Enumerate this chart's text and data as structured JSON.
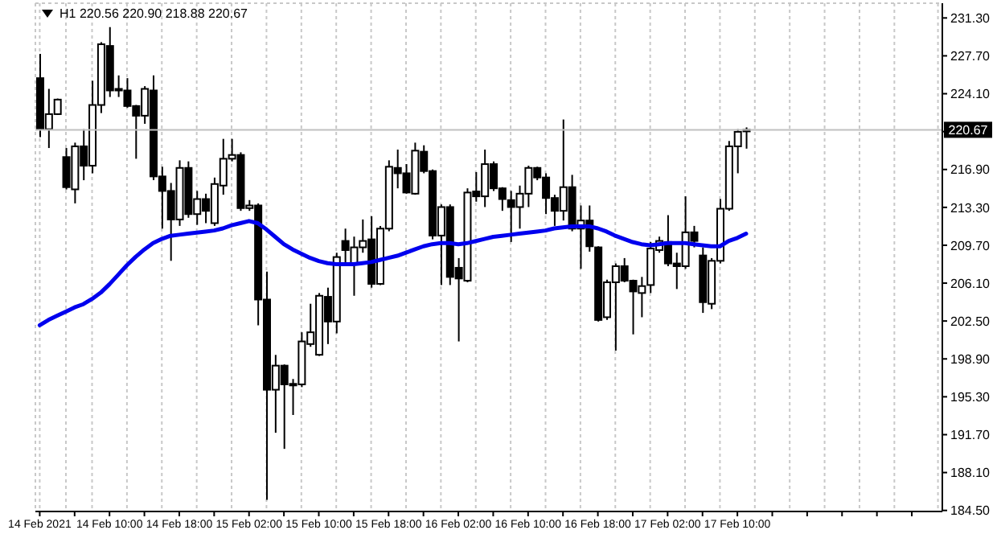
{
  "chart_data": {
    "type": "candlestick",
    "title": "H1 220.56 220.90 218.88 220.67",
    "categories": [
      "14 Feb 2021",
      null,
      null,
      null,
      null,
      null,
      null,
      null,
      "14 Feb 10:00",
      null,
      null,
      null,
      null,
      null,
      null,
      null,
      "14 Feb 18:00",
      null,
      null,
      null,
      null,
      null,
      null,
      null,
      "15 Feb 02:00",
      null,
      null,
      null,
      null,
      null,
      null,
      null,
      "15 Feb 10:00",
      null,
      null,
      null,
      null,
      null,
      null,
      null,
      "15 Feb 18:00",
      null,
      null,
      null,
      null,
      null,
      null,
      null,
      "16 Feb 02:00",
      null,
      null,
      null,
      null,
      null,
      null,
      null,
      "16 Feb 10:00",
      null,
      null,
      null,
      null,
      null,
      null,
      null,
      "16 Feb 18:00",
      null,
      null,
      null,
      null,
      null,
      null,
      null,
      "17 Feb 02:00",
      null,
      null,
      null,
      null,
      null,
      null,
      null,
      "17 Feb 10:00",
      null,
      null,
      null,
      null,
      null,
      null,
      null,
      null,
      null,
      null,
      null,
      null,
      null,
      null,
      null,
      null,
      null,
      null,
      null,
      null,
      null,
      null,
      null
    ],
    "ohlc": [
      [
        225.58,
        227.88,
        219.97,
        220.73
      ],
      [
        220.73,
        224.56,
        218.94,
        222.16
      ],
      [
        222.16,
        223.64,
        222.1,
        223.54
      ],
      [
        218.08,
        218.94,
        215.0,
        215.22
      ],
      [
        215.01,
        219.45,
        213.68,
        219.1
      ],
      [
        219.1,
        220.73,
        215.88,
        217.26
      ],
      [
        217.26,
        225.33,
        216.54,
        223.03
      ],
      [
        223.03,
        229.0,
        222.26,
        228.8
      ],
      [
        228.64,
        230.43,
        223.79,
        224.41
      ],
      [
        224.41,
        225.84,
        223.79,
        224.56
      ],
      [
        224.41,
        225.58,
        222.77,
        222.93
      ],
      [
        222.93,
        223.03,
        217.92,
        222.01
      ],
      [
        222.01,
        224.82,
        221.24,
        224.56
      ],
      [
        224.41,
        225.84,
        215.88,
        216.24
      ],
      [
        216.24,
        217.16,
        211.28,
        214.86
      ],
      [
        214.86,
        215.62,
        208.22,
        212.15
      ],
      [
        212.15,
        217.77,
        211.54,
        217.05
      ],
      [
        217.05,
        217.67,
        212.31,
        212.66
      ],
      [
        212.66,
        214.86,
        211.64,
        214.09
      ],
      [
        214.09,
        214.6,
        211.8,
        212.97
      ],
      [
        211.8,
        216.13,
        211.54,
        215.52
      ],
      [
        215.37,
        219.81,
        214.5,
        217.92
      ],
      [
        217.92,
        219.81,
        217.67,
        218.28
      ],
      [
        218.28,
        218.53,
        212.97,
        213.23
      ],
      [
        213.23,
        213.99,
        212.97,
        213.48
      ],
      [
        213.48,
        213.68,
        202.09,
        204.54
      ],
      [
        204.54,
        207.2,
        185.5,
        195.97
      ],
      [
        195.97,
        199.28,
        191.88,
        198.26
      ],
      [
        198.26,
        198.37,
        190.35,
        196.48
      ],
      [
        196.53,
        196.99,
        193.57,
        196.43
      ],
      [
        196.48,
        201.43,
        196.22,
        200.56
      ],
      [
        200.31,
        204.14,
        200.05,
        201.43
      ],
      [
        199.29,
        205.16,
        199.18,
        204.9
      ],
      [
        204.8,
        205.67,
        200.31,
        202.45
      ],
      [
        202.45,
        208.99,
        201.33,
        208.58
      ],
      [
        210.11,
        211.28,
        207.97,
        209.24
      ],
      [
        207.97,
        210.52,
        204.9,
        209.5
      ],
      [
        209.5,
        212.15,
        208.99,
        210.11
      ],
      [
        210.26,
        212.46,
        205.67,
        206.03
      ],
      [
        206.03,
        211.54,
        205.92,
        211.28
      ],
      [
        211.28,
        217.77,
        211.03,
        217.16
      ],
      [
        217.05,
        218.79,
        215.11,
        216.54
      ],
      [
        216.54,
        217.41,
        214.6,
        214.71
      ],
      [
        214.6,
        219.45,
        214.5,
        218.69
      ],
      [
        218.59,
        219.2,
        216.54,
        216.75
      ],
      [
        216.75,
        216.9,
        210.26,
        210.62
      ],
      [
        210.62,
        213.58,
        205.92,
        213.33
      ],
      [
        213.33,
        213.58,
        205.92,
        206.69
      ],
      [
        207.56,
        208.48,
        200.56,
        206.54
      ],
      [
        206.33,
        215.11,
        206.18,
        214.71
      ],
      [
        214.81,
        216.65,
        213.84,
        214.35
      ],
      [
        214.35,
        218.79,
        213.33,
        217.41
      ],
      [
        217.41,
        217.67,
        214.86,
        215.11
      ],
      [
        215.11,
        215.22,
        212.97,
        214.09
      ],
      [
        213.99,
        214.86,
        210.01,
        213.33
      ],
      [
        213.33,
        215.37,
        211.28,
        214.6
      ],
      [
        214.6,
        217.26,
        213.33,
        217.05
      ],
      [
        217.05,
        217.16,
        215.88,
        216.14
      ],
      [
        216.14,
        216.54,
        212.66,
        214.19
      ],
      [
        214.19,
        214.5,
        211.54,
        212.97
      ],
      [
        212.97,
        221.65,
        212.05,
        215.22
      ],
      [
        215.22,
        216.39,
        211.03,
        211.28
      ],
      [
        211.28,
        213.48,
        207.46,
        212.05
      ],
      [
        212.05,
        213.48,
        209.09,
        209.6
      ],
      [
        209.5,
        209.6,
        202.45,
        202.6
      ],
      [
        202.86,
        206.43,
        202.6,
        206.18
      ],
      [
        206.18,
        207.97,
        199.69,
        207.71
      ],
      [
        207.71,
        208.48,
        206.18,
        206.33
      ],
      [
        206.33,
        206.43,
        201.23,
        205.31
      ],
      [
        205.16,
        206.69,
        202.86,
        205.82
      ],
      [
        205.92,
        210.01,
        205.16,
        209.39
      ],
      [
        209.24,
        210.52,
        208.99,
        210.11
      ],
      [
        210.01,
        212.56,
        207.71,
        207.97
      ],
      [
        207.97,
        208.99,
        205.54,
        207.71
      ],
      [
        207.71,
        214.35,
        207.46,
        210.93
      ],
      [
        210.93,
        211.54,
        209.5,
        210.11
      ],
      [
        208.73,
        209.5,
        203.27,
        204.29
      ],
      [
        204.14,
        208.48,
        203.63,
        208.22
      ],
      [
        208.22,
        214.09,
        207.97,
        213.17
      ],
      [
        213.17,
        219.61,
        212.97,
        219.1
      ],
      [
        219.1,
        220.73,
        216.54,
        220.48
      ],
      [
        220.56,
        220.9,
        218.88,
        220.67
      ],
      null,
      null,
      null,
      null,
      null,
      null,
      null,
      null,
      null,
      null,
      null,
      null,
      null,
      null,
      null,
      null,
      null,
      null,
      null,
      null,
      null,
      null
    ],
    "series": [
      {
        "type": "line",
        "color": "#0000ee",
        "values": [
          202.1,
          202.6,
          203.0,
          203.4,
          203.8,
          204.1,
          204.6,
          205.2,
          206.0,
          206.9,
          207.8,
          208.6,
          209.3,
          209.9,
          210.3,
          210.6,
          210.7,
          210.8,
          210.9,
          211.0,
          211.1,
          211.3,
          211.6,
          211.8,
          212.0,
          211.8,
          211.2,
          210.5,
          209.8,
          209.3,
          208.9,
          208.5,
          208.2,
          208.0,
          207.9,
          207.9,
          207.9,
          208.0,
          208.1,
          208.3,
          208.5,
          208.7,
          209.0,
          209.3,
          209.6,
          209.8,
          209.9,
          209.9,
          209.8,
          209.9,
          210.1,
          210.3,
          210.5,
          210.6,
          210.7,
          210.8,
          210.9,
          211.0,
          211.1,
          211.3,
          211.4,
          211.5,
          211.5,
          211.5,
          211.3,
          211.0,
          210.6,
          210.3,
          210.0,
          209.8,
          209.7,
          209.8,
          209.9,
          209.9,
          209.9,
          209.8,
          209.7,
          209.6,
          209.6,
          210.1,
          210.4,
          210.8,
          null,
          null,
          null,
          null,
          null,
          null,
          null,
          null,
          null,
          null,
          null,
          null,
          null,
          null,
          null,
          null,
          null,
          null,
          null,
          null,
          null,
          null
        ]
      }
    ],
    "ylim": [
      184.4,
      232.7
    ],
    "yticks": [
      {
        "value": 184.5,
        "label": "184.50"
      },
      {
        "value": 188.1,
        "label": "188.10"
      },
      {
        "value": 191.7,
        "label": "191.70"
      },
      {
        "value": 195.3,
        "label": "195.30"
      },
      {
        "value": 198.9,
        "label": "198.90"
      },
      {
        "value": 202.5,
        "label": "202.50"
      },
      {
        "value": 206.1,
        "label": "206.10"
      },
      {
        "value": 209.7,
        "label": "209.70"
      },
      {
        "value": 213.3,
        "label": "213.30"
      },
      {
        "value": 216.9,
        "label": "216.90"
      },
      {
        "value": 220.5,
        "label": null
      },
      {
        "value": 224.1,
        "label": "224.10"
      },
      {
        "value": 227.7,
        "label": "227.70"
      },
      {
        "value": 231.3,
        "label": "231.30"
      }
    ],
    "ref_lines": [
      {
        "axis": "y",
        "value": 220.67,
        "label": "220.67",
        "color": "#c0c0c0"
      }
    ],
    "grid": true
  }
}
